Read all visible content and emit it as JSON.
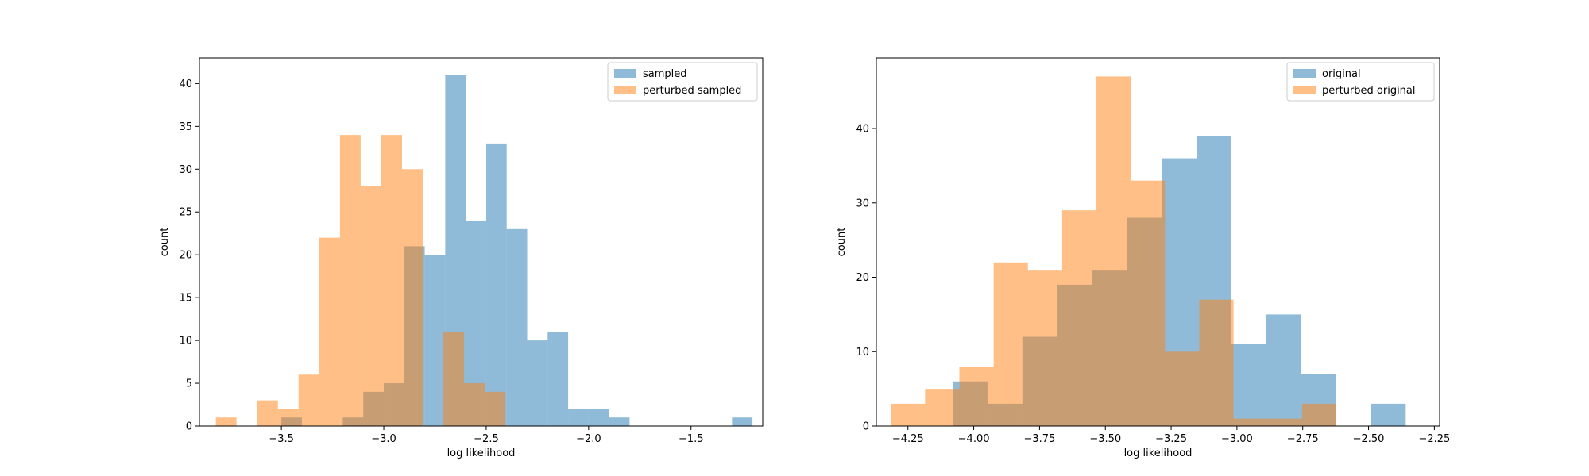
{
  "chart_data": [
    {
      "type": "histogram",
      "xlabel": "log likelihood",
      "ylabel": "count",
      "xlim": [
        -3.9,
        -1.15
      ],
      "ylim": [
        0,
        43
      ],
      "xticks": [
        -3.5,
        -3.0,
        -2.5,
        -2.0,
        -1.5
      ],
      "xtick_labels": [
        "−3.5",
        "−3.0",
        "−2.5",
        "−2.0",
        "−1.5"
      ],
      "yticks": [
        0,
        5,
        10,
        15,
        20,
        25,
        30,
        35,
        40
      ],
      "legend_position": "top-right",
      "series": [
        {
          "name": "sampled",
          "color": "#1f77b4",
          "alpha": 0.5,
          "bin_start": -3.5,
          "bin_width": 0.1,
          "counts": [
            1,
            0,
            0,
            1,
            4,
            5,
            21,
            20,
            41,
            24,
            33,
            23,
            10,
            11,
            2,
            2,
            1,
            0,
            0,
            0,
            0,
            0,
            1
          ]
        },
        {
          "name": "perturbed sampled",
          "color": "#ff7f0e",
          "alpha": 0.5,
          "bin_start": -3.82,
          "bin_width": 0.101,
          "counts": [
            1,
            0,
            3,
            2,
            6,
            22,
            34,
            28,
            34,
            30,
            0,
            11,
            5,
            4
          ]
        }
      ]
    },
    {
      "type": "histogram",
      "xlabel": "log likelihood",
      "ylabel": "count",
      "xlim": [
        -4.37,
        -2.23
      ],
      "ylim": [
        0,
        49.5
      ],
      "xticks": [
        -4.25,
        -4.0,
        -3.75,
        -3.5,
        -3.25,
        -3.0,
        -2.75,
        -2.5,
        -2.25
      ],
      "xtick_labels": [
        "−4.25",
        "−4.00",
        "−3.75",
        "−3.50",
        "−3.25",
        "−3.00",
        "−2.75",
        "−2.50",
        "−2.25"
      ],
      "yticks": [
        0,
        10,
        20,
        30,
        40
      ],
      "legend_position": "top-right",
      "series": [
        {
          "name": "original",
          "color": "#1f77b4",
          "alpha": 0.5,
          "bin_start": -4.08,
          "bin_width": 0.1324,
          "counts": [
            6,
            3,
            12,
            19,
            21,
            28,
            36,
            39,
            11,
            15,
            7,
            0,
            3
          ]
        },
        {
          "name": "perturbed original",
          "color": "#ff7f0e",
          "alpha": 0.5,
          "bin_start": -4.315,
          "bin_width": 0.1302,
          "counts": [
            3,
            5,
            8,
            22,
            21,
            29,
            47,
            33,
            10,
            17,
            1,
            1,
            3
          ]
        }
      ]
    }
  ]
}
